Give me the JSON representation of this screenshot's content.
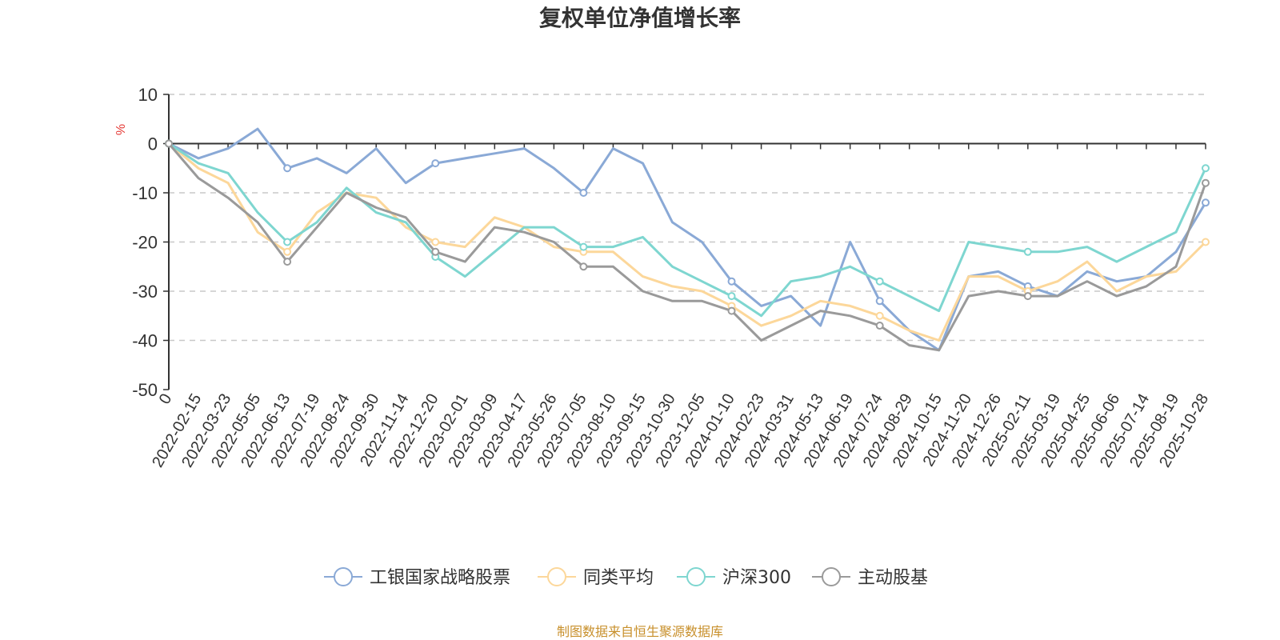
{
  "colors": {
    "fund": "#8aa9d6",
    "peer": "#fcd79a",
    "index": "#7ed6d0",
    "active": "#9a9a9a",
    "unit": "#e53935",
    "source": "#c8902c",
    "axis": "#333333",
    "grid": "#c8c8c8"
  },
  "chart_data": {
    "type": "line",
    "title": "复权单位净值增长率",
    "ylabel": "%",
    "xlabel": "",
    "ylim": [
      -50,
      10
    ],
    "yticks": [
      10,
      0,
      -10,
      -20,
      -30,
      -40,
      -50
    ],
    "xticks": [
      "0",
      "2022-02-15",
      "2022-03-23",
      "2022-05-05",
      "2022-06-13",
      "2022-07-19",
      "2022-08-24",
      "2022-09-30",
      "2022-11-14",
      "2022-12-20",
      "2023-02-01",
      "2023-03-09",
      "2023-04-17",
      "2023-05-26",
      "2023-07-05",
      "2023-08-10",
      "2023-09-15",
      "2023-10-30",
      "2023-12-05",
      "2024-01-10",
      "2024-02-23",
      "2024-03-31",
      "2024-05-13",
      "2024-06-19",
      "2024-07-24",
      "2024-08-29",
      "2024-10-15",
      "2024-11-20",
      "2024-12-26",
      "2025-02-11",
      "2025-03-19",
      "2025-04-25",
      "2025-06-06",
      "2025-07-14",
      "2025-08-19",
      "2025-10-28"
    ],
    "x": [
      "0",
      "2022-02-15",
      "2022-03-23",
      "2022-05-05",
      "2022-06-13",
      "2022-07-19",
      "2022-08-24",
      "2022-09-30",
      "2022-11-14",
      "2022-12-20",
      "2023-02-01",
      "2023-03-09",
      "2023-04-17",
      "2023-05-26",
      "2023-07-05",
      "2023-08-10",
      "2023-09-15",
      "2023-10-30",
      "2023-12-05",
      "2024-01-10",
      "2024-02-23",
      "2024-03-31",
      "2024-05-13",
      "2024-06-19",
      "2024-07-24",
      "2024-08-29",
      "2024-10-15",
      "2024-11-20",
      "2024-12-26",
      "2025-02-11",
      "2025-03-19",
      "2025-04-25",
      "2025-06-06",
      "2025-07-14",
      "2025-08-19",
      "2025-10-28"
    ],
    "series": [
      {
        "name": "工银国家战略股票",
        "color_key": "fund",
        "values": [
          0,
          -3,
          -1,
          3,
          -5,
          -3,
          -6,
          -1,
          -8,
          -4,
          -3,
          -2,
          -1,
          -5,
          -10,
          -1,
          -4,
          -16,
          -20,
          -28,
          -33,
          -31,
          -37,
          -20,
          -32,
          -38,
          -42,
          -27,
          -26,
          -29,
          -31,
          -26,
          -28,
          -27,
          -22,
          -12
        ]
      },
      {
        "name": "同类平均",
        "color_key": "peer",
        "values": [
          0,
          -5,
          -8,
          -18,
          -22,
          -14,
          -10,
          -11,
          -17,
          -20,
          -21,
          -15,
          -17,
          -21,
          -22,
          -22,
          -27,
          -29,
          -30,
          -33,
          -37,
          -35,
          -32,
          -33,
          -35,
          -38,
          -40,
          -27,
          -27,
          -30,
          -28,
          -24,
          -30,
          -27,
          -26,
          -20
        ]
      },
      {
        "name": "沪深300",
        "color_key": "index",
        "values": [
          0,
          -4,
          -6,
          -14,
          -20,
          -16,
          -9,
          -14,
          -16,
          -23,
          -27,
          -22,
          -17,
          -17,
          -21,
          -21,
          -19,
          -25,
          -28,
          -31,
          -35,
          -28,
          -27,
          -25,
          -28,
          -31,
          -34,
          -20,
          -21,
          -22,
          -22,
          -21,
          -24,
          -21,
          -18,
          -5
        ]
      },
      {
        "name": "主动股基",
        "color_key": "active",
        "values": [
          0,
          -7,
          -11,
          -16,
          -24,
          -17,
          -10,
          -13,
          -15,
          -22,
          -24,
          -17,
          -18,
          -20,
          -25,
          -25,
          -30,
          -32,
          -32,
          -34,
          -40,
          -37,
          -34,
          -35,
          -37,
          -41,
          -42,
          -31,
          -30,
          -31,
          -31,
          -28,
          -31,
          -29,
          -25,
          -8
        ]
      }
    ],
    "legend_position": "bottom-center"
  },
  "source_text": "制图数据来自恒生聚源数据库"
}
